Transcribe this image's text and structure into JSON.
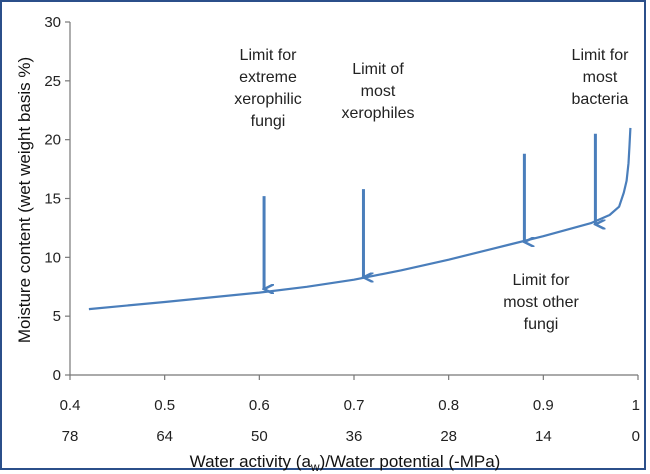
{
  "chart_data": {
    "type": "line",
    "title": "",
    "ylabel": "Moisture content (wet weight basis %)",
    "xlabel": "Water activity (a_w)/Water potential (-MPa)",
    "xlabel_parts": {
      "prefix": "Water activity (a",
      "subscript": "w",
      "suffix": ")/Water potential (-MPa)"
    },
    "xlim": [
      0.4,
      1.0
    ],
    "ylim": [
      0,
      30
    ],
    "grid": false,
    "y_ticks": [
      0,
      5,
      10,
      15,
      20,
      25,
      30
    ],
    "x_ticks_aw": [
      "0.4",
      "0.5",
      "0.6",
      "0.7",
      "0.8",
      "0.9",
      "1"
    ],
    "x_ticks_mpa": [
      "78",
      "64",
      "50",
      "36",
      "28",
      "14",
      "0"
    ],
    "series": [
      {
        "color": "#4a7ebb",
        "x": [
          0.42,
          0.5,
          0.6,
          0.65,
          0.7,
          0.75,
          0.8,
          0.85,
          0.9,
          0.95,
          0.97,
          0.98,
          0.985,
          0.988,
          0.99,
          0.991,
          0.992
        ],
        "y": [
          5.6,
          6.2,
          7.0,
          7.5,
          8.1,
          8.9,
          9.8,
          10.8,
          11.8,
          12.9,
          13.6,
          14.3,
          15.5,
          16.5,
          18.0,
          19.5,
          21.0
        ]
      }
    ],
    "annotations": [
      {
        "lines": [
          "Limit for",
          "extreme",
          "xerophilic",
          "fungi"
        ],
        "arrow_x": 0.605,
        "arrow_from_y": 15.2,
        "arrow_to_y": 7.3
      },
      {
        "lines": [
          "Limit of",
          "most",
          "xerophiles"
        ],
        "arrow_x": 0.71,
        "arrow_from_y": 15.8,
        "arrow_to_y": 8.3
      },
      {
        "lines": [
          "Limit for",
          "most other",
          "fungi"
        ],
        "arrow_x": 0.88,
        "arrow_from_y": 18.8,
        "arrow_to_y": 11.3
      },
      {
        "lines": [
          "Limit for",
          "most",
          "bacteria"
        ],
        "arrow_x": 0.955,
        "arrow_from_y": 20.5,
        "arrow_to_y": 12.8
      }
    ],
    "arrow_color": "#4a7ebb"
  }
}
